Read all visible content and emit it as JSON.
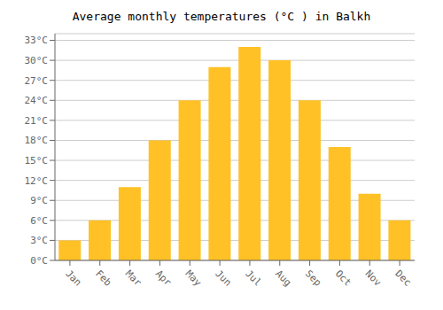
{
  "chart_data": {
    "type": "bar",
    "title": "Average monthly temperatures (°C ) in Balkh",
    "categories": [
      "Jan",
      "Feb",
      "Mar",
      "Apr",
      "May",
      "Jun",
      "Jul",
      "Aug",
      "Sep",
      "Oct",
      "Nov",
      "Dec"
    ],
    "values": [
      3,
      6,
      11,
      18,
      24,
      29,
      32,
      30,
      24,
      17,
      10,
      6
    ],
    "color": "#FFC125",
    "ylim": [
      0,
      34
    ],
    "yticks": [
      {
        "value": 0,
        "label": "0°C"
      },
      {
        "value": 3,
        "label": "3°C"
      },
      {
        "value": 6,
        "label": "6°C"
      },
      {
        "value": 9,
        "label": "9°C"
      },
      {
        "value": 12,
        "label": "12°C"
      },
      {
        "value": 15,
        "label": "15°C"
      },
      {
        "value": 18,
        "label": "18°C"
      },
      {
        "value": 21,
        "label": "21°C"
      },
      {
        "value": 24,
        "label": "24°C"
      },
      {
        "value": 27,
        "label": "27°C"
      },
      {
        "value": 30,
        "label": "30°C"
      },
      {
        "value": 33,
        "label": "33°C"
      }
    ],
    "grid": true
  }
}
